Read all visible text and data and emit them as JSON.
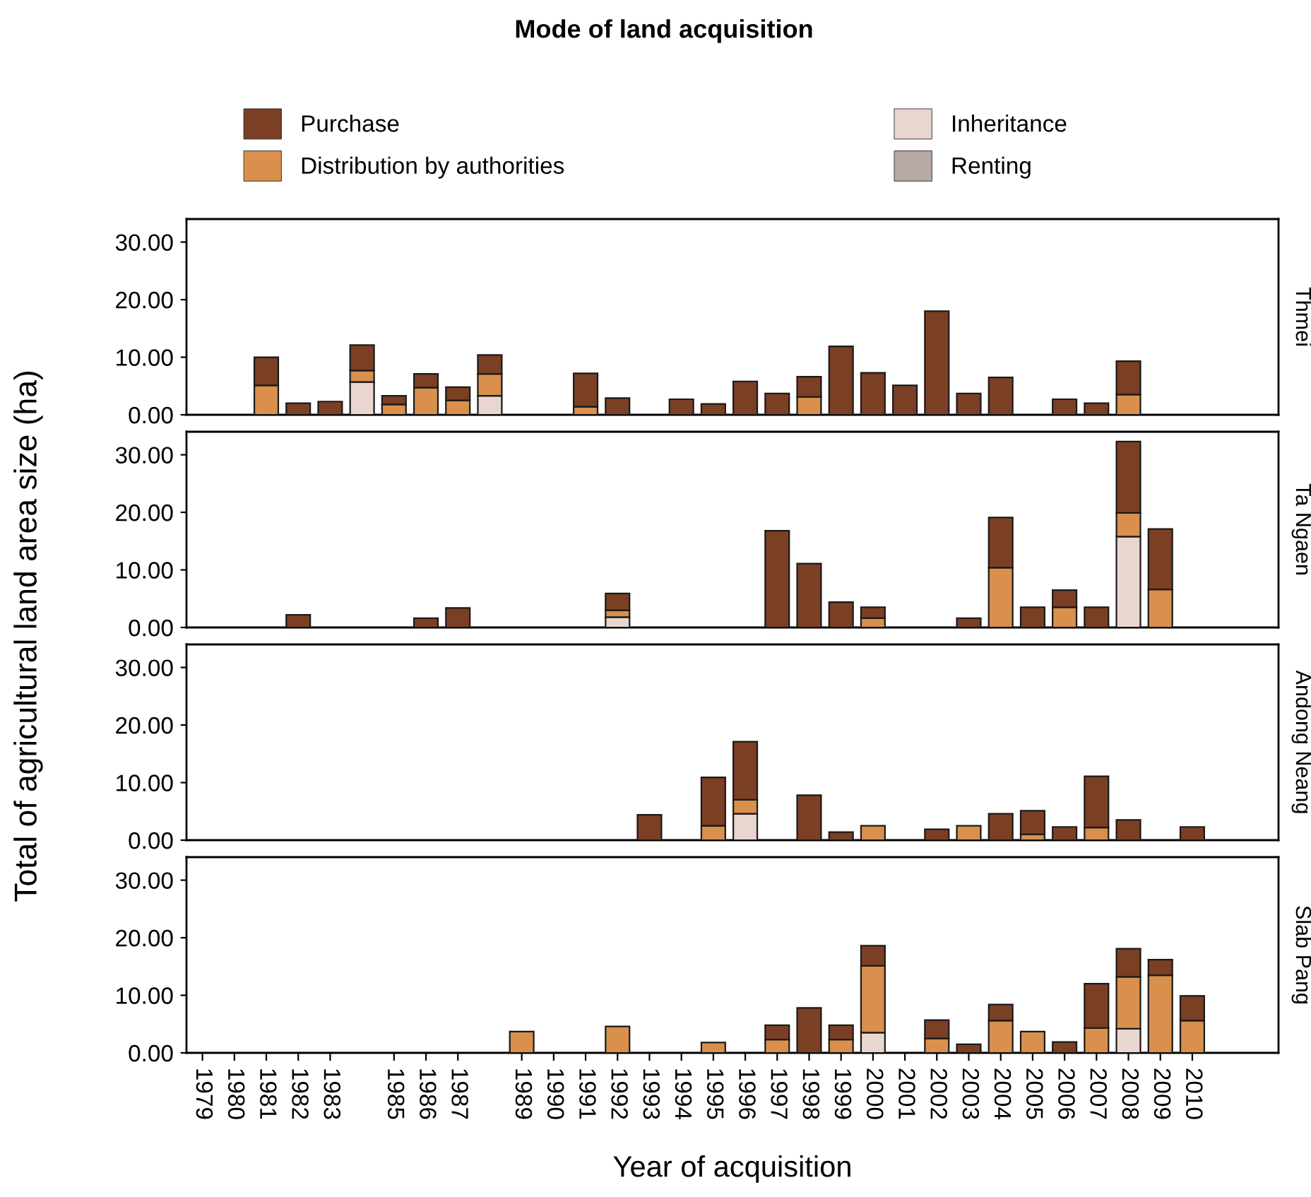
{
  "chart_data": [
    {
      "type": "bar",
      "stacked": true,
      "annotations": [
        "Thmei"
      ],
      "legend_title": "Mode of land acquisition",
      "legend": "top",
      "ylabel": "Total of agricultural land area size (ha)",
      "tick_labels": "y",
      "categories": [
        "1979",
        "1980",
        "1981",
        "1982",
        "1983",
        null,
        "1985",
        "1986",
        "1987",
        null,
        "1989",
        "1990",
        "1991",
        "1992",
        "1993",
        "1994",
        "1995",
        "1996",
        "1997",
        "1998",
        "1999",
        "2000",
        "2001",
        "2002",
        "2003",
        "2004",
        "2005",
        "2006",
        "2007",
        "2008",
        "2009",
        "2010"
      ],
      "series": [
        {
          "name": "Renting",
          "color": "#b9a9a6",
          "values": [
            null,
            null,
            null,
            null,
            null,
            null,
            null,
            null,
            null,
            null,
            null,
            null,
            null,
            null,
            null,
            null,
            null,
            null,
            null,
            null,
            null,
            null,
            null,
            null,
            null,
            null,
            null,
            null,
            null,
            null,
            null,
            null
          ]
        },
        {
          "name": "Inheritance",
          "color": "#e9d6d1",
          "values": [
            null,
            null,
            null,
            null,
            null,
            5.7,
            null,
            null,
            null,
            3.3,
            null,
            null,
            null,
            null,
            null,
            null,
            null,
            null,
            null,
            null,
            null,
            null,
            null,
            null,
            null,
            null,
            null,
            null,
            null,
            null,
            null,
            null
          ]
        },
        {
          "name": "Distribution by authorities",
          "color": "#d8904c",
          "values": [
            null,
            null,
            5.1,
            null,
            null,
            2.0,
            1.8,
            4.7,
            2.5,
            3.8,
            null,
            null,
            1.4,
            null,
            null,
            null,
            null,
            null,
            null,
            3.1,
            null,
            null,
            null,
            null,
            null,
            null,
            null,
            null,
            null,
            3.5,
            null,
            null
          ]
        },
        {
          "name": "Purchase",
          "color": "#7b3f24",
          "values": [
            null,
            null,
            4.9,
            2.0,
            2.3,
            4.4,
            1.5,
            2.4,
            2.3,
            3.3,
            null,
            null,
            5.8,
            2.9,
            null,
            2.7,
            1.9,
            5.8,
            3.7,
            3.5,
            11.9,
            7.3,
            5.1,
            18.0,
            3.7,
            6.5,
            null,
            2.7,
            2.0,
            5.8,
            null,
            null
          ]
        }
      ],
      "ylim": [
        0,
        34
      ],
      "yticks": [
        {
          "value": 0,
          "label": "0.00"
        },
        {
          "value": 10,
          "label": "10.00"
        },
        {
          "value": 20,
          "label": "20.00"
        },
        {
          "value": 30,
          "label": "30.00"
        }
      ]
    },
    {
      "type": "bar",
      "stacked": true,
      "annotations": [
        "Ta Ngaen"
      ],
      "tick_labels": "y",
      "categories": [
        "1979",
        "1980",
        "1981",
        "1982",
        "1983",
        null,
        "1985",
        "1986",
        "1987",
        null,
        "1989",
        "1990",
        "1991",
        "1992",
        "1993",
        "1994",
        "1995",
        "1996",
        "1997",
        "1998",
        "1999",
        "2000",
        "2001",
        "2002",
        "2003",
        "2004",
        "2005",
        "2006",
        "2007",
        "2008",
        "2009",
        "2010"
      ],
      "series": [
        {
          "color": "#e9d6d1",
          "values": [
            null,
            null,
            null,
            null,
            null,
            null,
            null,
            null,
            null,
            null,
            null,
            null,
            null,
            1.8,
            null,
            null,
            null,
            null,
            null,
            null,
            null,
            null,
            null,
            null,
            null,
            null,
            null,
            null,
            null,
            15.8,
            null,
            null
          ]
        },
        {
          "color": "#d8904c",
          "values": [
            null,
            null,
            null,
            null,
            null,
            null,
            null,
            null,
            null,
            null,
            null,
            null,
            null,
            1.2,
            null,
            null,
            null,
            null,
            null,
            null,
            null,
            1.6,
            null,
            null,
            null,
            10.4,
            null,
            3.5,
            null,
            4.1,
            6.6,
            null
          ]
        },
        {
          "color": "#7b3f24",
          "values": [
            null,
            null,
            null,
            2.2,
            null,
            null,
            null,
            1.6,
            3.4,
            null,
            null,
            null,
            null,
            2.9,
            null,
            null,
            null,
            null,
            16.8,
            11.1,
            4.4,
            1.9,
            null,
            null,
            1.6,
            8.7,
            3.5,
            3.0,
            3.5,
            12.4,
            10.5,
            null
          ]
        }
      ],
      "ylim": [
        0,
        34
      ],
      "yticks": [
        {
          "value": 0,
          "label": "0.00"
        },
        {
          "value": 10,
          "label": "10.00"
        },
        {
          "value": 20,
          "label": "20.00"
        },
        {
          "value": 30,
          "label": "30.00"
        }
      ]
    },
    {
      "type": "bar",
      "stacked": true,
      "annotations": [
        "Andong Neang"
      ],
      "tick_labels": "y",
      "categories": [
        "1979",
        "1980",
        "1981",
        "1982",
        "1983",
        null,
        "1985",
        "1986",
        "1987",
        null,
        "1989",
        "1990",
        "1991",
        "1992",
        "1993",
        "1994",
        "1995",
        "1996",
        "1997",
        "1998",
        "1999",
        "2000",
        "2001",
        "2002",
        "2003",
        "2004",
        "2005",
        "2006",
        "2007",
        "2008",
        "2009",
        "2010"
      ],
      "series": [
        {
          "color": "#e9d6d1",
          "values": [
            null,
            null,
            null,
            null,
            null,
            null,
            null,
            null,
            null,
            null,
            null,
            null,
            null,
            null,
            null,
            null,
            null,
            4.6,
            null,
            null,
            null,
            null,
            null,
            null,
            null,
            null,
            null,
            null,
            null,
            null,
            null,
            null
          ]
        },
        {
          "color": "#d8904c",
          "values": [
            null,
            null,
            null,
            null,
            null,
            null,
            null,
            null,
            null,
            null,
            null,
            null,
            null,
            null,
            null,
            null,
            2.5,
            2.4,
            null,
            null,
            null,
            2.5,
            null,
            null,
            2.5,
            null,
            1.0,
            null,
            2.2,
            null,
            null,
            null
          ]
        },
        {
          "color": "#7b3f24",
          "values": [
            null,
            null,
            null,
            null,
            null,
            null,
            null,
            null,
            null,
            null,
            null,
            null,
            null,
            null,
            4.4,
            null,
            8.4,
            10.1,
            null,
            7.8,
            1.4,
            null,
            null,
            1.9,
            null,
            4.6,
            4.1,
            2.3,
            8.9,
            3.5,
            null,
            2.3
          ]
        }
      ],
      "ylim": [
        0,
        34
      ],
      "yticks": [
        {
          "value": 0,
          "label": "0.00"
        },
        {
          "value": 10,
          "label": "10.00"
        },
        {
          "value": 20,
          "label": "20.00"
        },
        {
          "value": 30,
          "label": "30.00"
        }
      ]
    },
    {
      "type": "bar",
      "stacked": true,
      "annotations": [
        "Slab Pang"
      ],
      "xlabel": "Year of acquisition",
      "categories": [
        "1979",
        "1980",
        "1981",
        "1982",
        "1983",
        null,
        "1985",
        "1986",
        "1987",
        null,
        "1989",
        "1990",
        "1991",
        "1992",
        "1993",
        "1994",
        "1995",
        "1996",
        "1997",
        "1998",
        "1999",
        "2000",
        "2001",
        "2002",
        "2003",
        "2004",
        "2005",
        "2006",
        "2007",
        "2008",
        "2009",
        "2010"
      ],
      "series": [
        {
          "color": "#e9d6d1",
          "values": [
            null,
            null,
            null,
            null,
            null,
            null,
            null,
            null,
            null,
            null,
            null,
            null,
            null,
            null,
            null,
            null,
            null,
            null,
            null,
            null,
            null,
            3.5,
            null,
            null,
            null,
            null,
            null,
            null,
            null,
            4.2,
            null,
            null
          ]
        },
        {
          "color": "#d8904c",
          "values": [
            null,
            null,
            null,
            null,
            null,
            null,
            null,
            null,
            null,
            null,
            3.7,
            null,
            null,
            4.6,
            null,
            null,
            1.8,
            null,
            2.3,
            null,
            2.3,
            11.6,
            null,
            2.5,
            null,
            5.6,
            3.7,
            null,
            4.3,
            9.0,
            13.5,
            5.6
          ]
        },
        {
          "color": "#7b3f24",
          "values": [
            null,
            null,
            null,
            null,
            null,
            null,
            null,
            null,
            null,
            null,
            null,
            null,
            null,
            null,
            null,
            null,
            null,
            null,
            2.5,
            7.8,
            2.5,
            3.5,
            null,
            3.2,
            1.5,
            2.8,
            null,
            1.9,
            7.7,
            4.9,
            2.7,
            4.3
          ]
        }
      ],
      "ylim": [
        0,
        34
      ],
      "yticks": [
        {
          "value": 0,
          "label": "0.00"
        },
        {
          "value": 10,
          "label": "10.00"
        },
        {
          "value": 20,
          "label": "20.00"
        },
        {
          "value": 30,
          "label": "30.00"
        }
      ]
    }
  ]
}
